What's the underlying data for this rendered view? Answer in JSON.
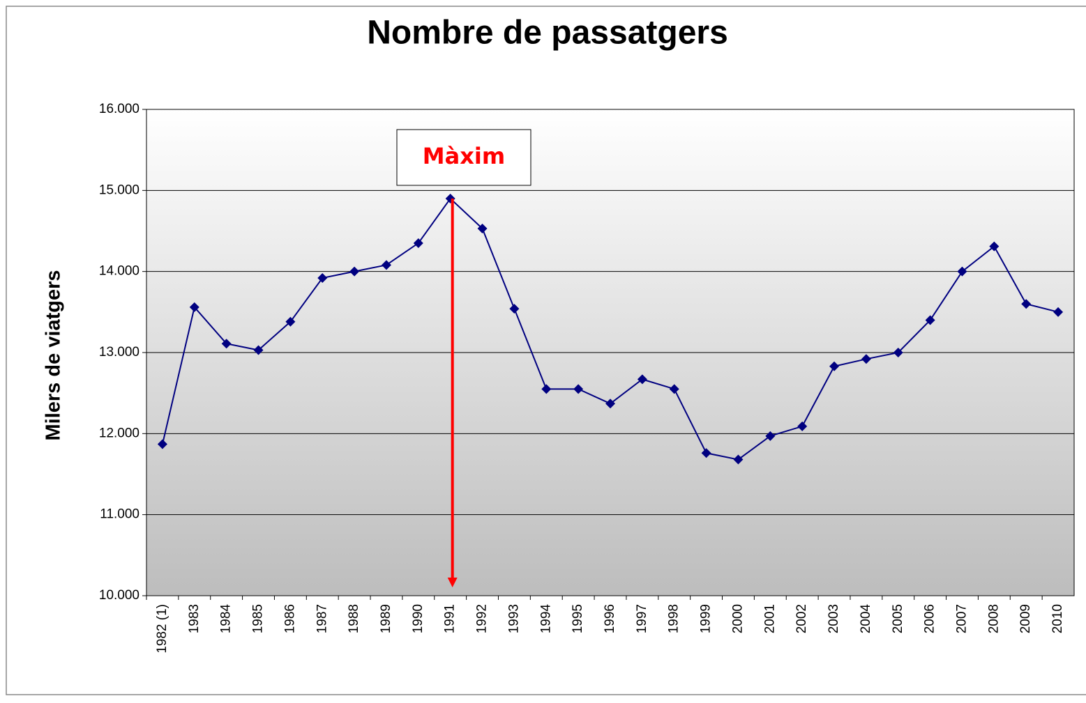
{
  "chart_data": {
    "type": "line",
    "title": "Nombre de passatgers",
    "y_label": "Milers de viatgers",
    "annotation": "Màxim",
    "categories": [
      "1982 (1)",
      "1983",
      "1984",
      "1985",
      "1986",
      "1987",
      "1988",
      "1989",
      "1990",
      "1991",
      "1992",
      "1993",
      "1994",
      "1995",
      "1996",
      "1997",
      "1998",
      "1999",
      "2000",
      "2001",
      "2002",
      "2003",
      "2004",
      "2005",
      "2006",
      "2007",
      "2008",
      "2009",
      "2010"
    ],
    "series": [
      {
        "color": "#000080",
        "values": [
          11870,
          13560,
          13110,
          13030,
          13380,
          13920,
          14000,
          14080,
          14350,
          14900,
          14530,
          13540,
          12550,
          12550,
          12370,
          12670,
          12550,
          11760,
          11680,
          11970,
          12090,
          12830,
          12920,
          13000,
          13400,
          14000,
          14310,
          13600,
          13500
        ]
      }
    ],
    "ylim": [
      10000,
      16000
    ],
    "yticks": [
      {
        "value": 10000,
        "label": "10.000"
      },
      {
        "value": 11000,
        "label": "11.000"
      },
      {
        "value": 12000,
        "label": "12.000"
      },
      {
        "value": 13000,
        "label": "13.000"
      },
      {
        "value": 14000,
        "label": "14.000"
      },
      {
        "value": 15000,
        "label": "15.000"
      },
      {
        "value": 16000,
        "label": "16.000"
      }
    ],
    "grid": true
  }
}
